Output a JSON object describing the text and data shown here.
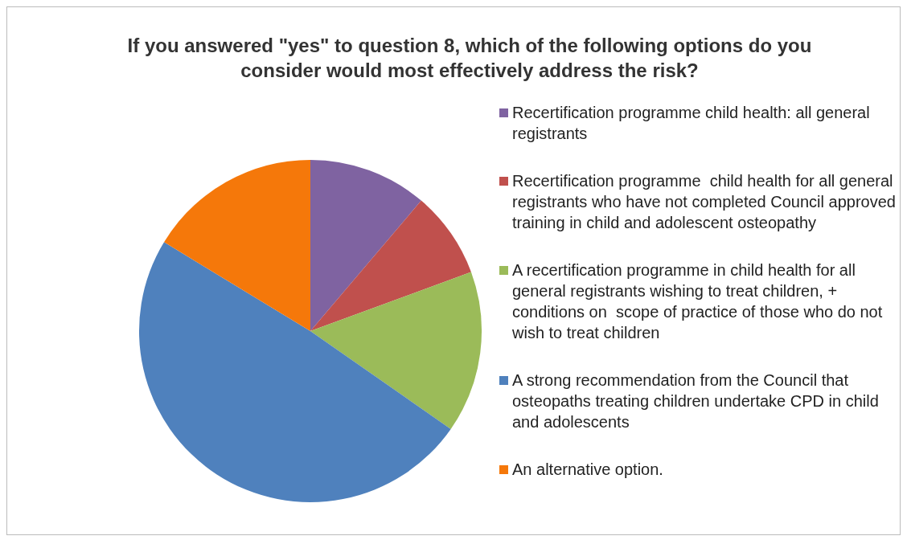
{
  "chart_data": {
    "type": "pie",
    "title": "If you answered \"yes\" to question 8, which of the following options do you consider would most effectively address the risk?",
    "categories": [
      "Recertification programme child health: all general registrants",
      "Recertification programme  child health for all general registrants who have not completed Council approved training in child and adolescent osteopathy",
      "A recertification programme in child health for all general registrants wishing to treat children, + conditions on  scope of practice of those who do not wish to treat children",
      "A strong recommendation from the Council that osteopaths treating children undertake CPD in child and adolescents",
      "An alternative option."
    ],
    "values": [
      11.2,
      8.2,
      15.3,
      49.0,
      16.3
    ],
    "colors": [
      "#7f63a1",
      "#c0504d",
      "#9bbb59",
      "#4f81bd",
      "#f5780a"
    ],
    "legend": "right"
  }
}
